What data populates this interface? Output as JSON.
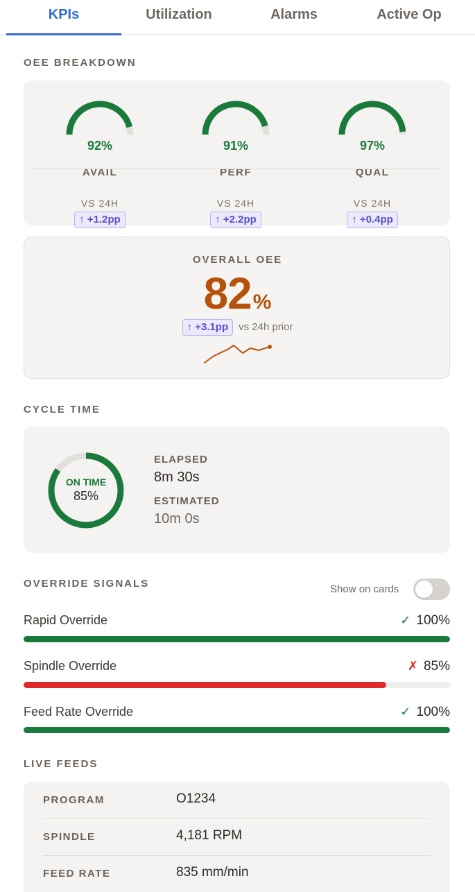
{
  "tabs": [
    {
      "label": "KPIs",
      "active": true
    },
    {
      "label": "Utilization",
      "active": false
    },
    {
      "label": "Alarms",
      "active": false
    },
    {
      "label": "Active Op",
      "active": false
    }
  ],
  "oee_breakdown": {
    "title": "OEE BREAKDOWN",
    "gauges": [
      {
        "pct_text": "92%",
        "value": 92,
        "label": "AVAIL",
        "vs": "VS 24H",
        "delta": "↑ +1.2pp"
      },
      {
        "pct_text": "91%",
        "value": 91,
        "label": "PERF",
        "vs": "VS 24H",
        "delta": "↑ +2.2pp"
      },
      {
        "pct_text": "97%",
        "value": 97,
        "label": "QUAL",
        "vs": "VS 24H",
        "delta": "↑ +0.4pp"
      }
    ]
  },
  "overall": {
    "title": "OVERALL OEE",
    "value": "82",
    "unit": "%",
    "delta": "↑ +3.1pp",
    "delta_suffix": "vs 24h prior"
  },
  "cycle_time": {
    "title": "CYCLE TIME",
    "status": "ON TIME",
    "pct_text": "85%",
    "progress": 0.85,
    "elapsed_label": "ELAPSED",
    "elapsed_value": "8m 30s",
    "estimated_label": "ESTIMATED",
    "estimated_value": "10m 0s"
  },
  "override_signals": {
    "title": "OVERRIDE SIGNALS",
    "toggle_label": "Show on cards",
    "toggle_on": false,
    "rows": [
      {
        "name": "Rapid Override",
        "mark": "✓",
        "value_text": "100%",
        "value": 100,
        "ok": true
      },
      {
        "name": "Spindle Override",
        "mark": "✗",
        "value_text": "85%",
        "value": 85,
        "ok": false
      },
      {
        "name": "Feed Rate Override",
        "mark": "✓",
        "value_text": "100%",
        "value": 100,
        "ok": true
      }
    ]
  },
  "live_feeds": {
    "title": "LIVE FEEDS",
    "rows": [
      {
        "key": "PROGRAM",
        "value": "O1234"
      },
      {
        "key": "SPINDLE",
        "value": "4,181 RPM"
      },
      {
        "key": "FEED RATE",
        "value": "835 mm/min"
      }
    ]
  },
  "colors": {
    "accent": "#2f6bd9",
    "good": "#1a7a3c",
    "bad": "#e02a2a",
    "oee": "#b5530c",
    "track": "#e2e0dd"
  }
}
